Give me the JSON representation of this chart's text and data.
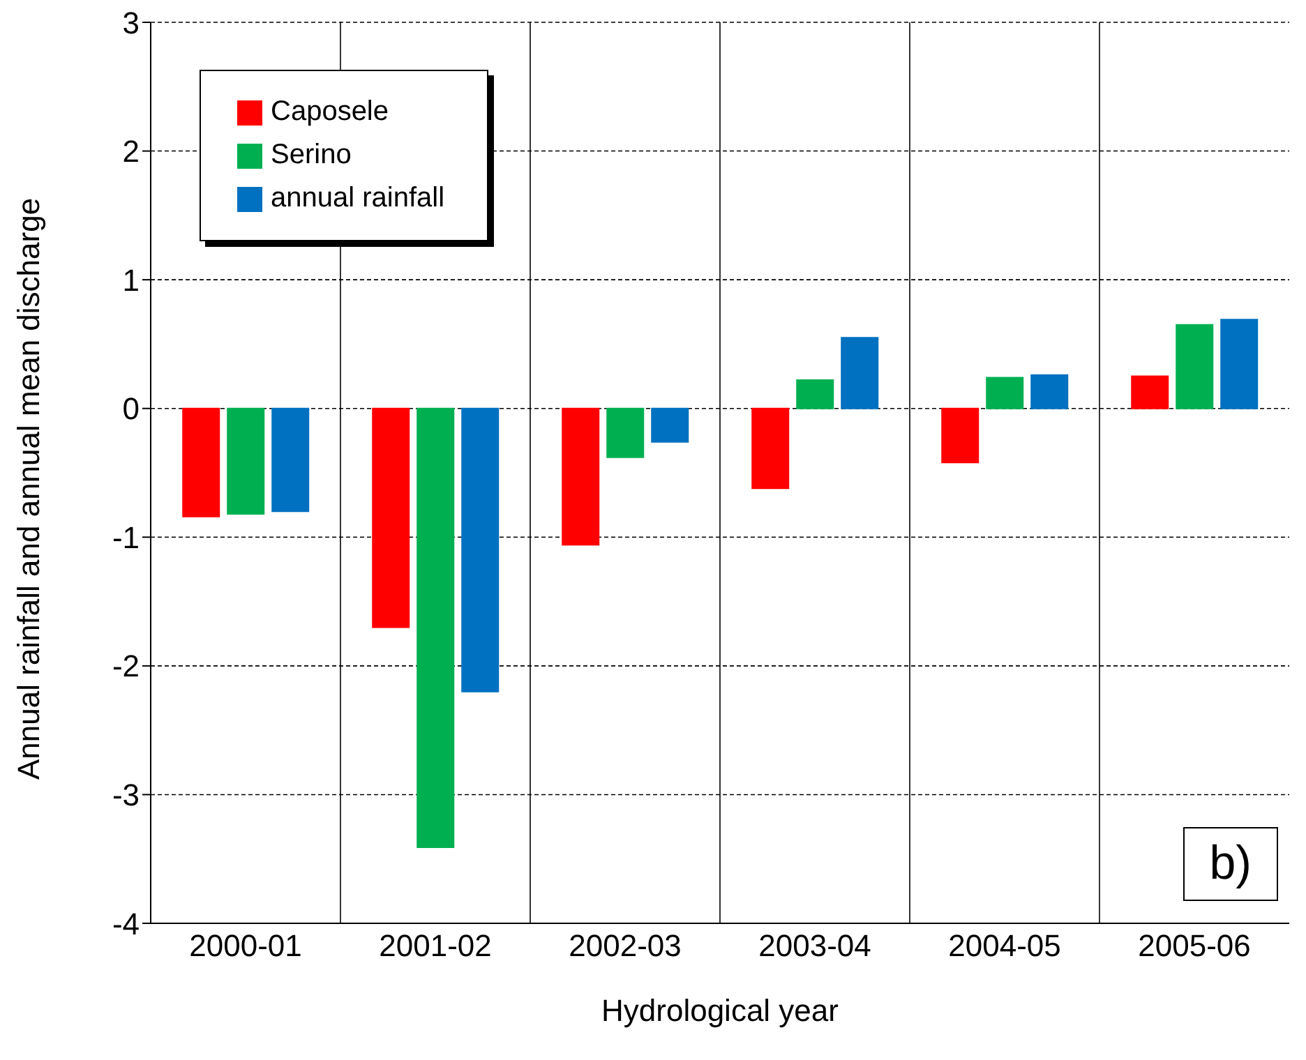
{
  "chart_data": {
    "type": "bar",
    "xlabel": "Hydrological year",
    "ylabel": "Annual rainfall and annual mean discharge",
    "categories": [
      "2000-01",
      "2001-02",
      "2002-03",
      "2003-04",
      "2004-05",
      "2005-06"
    ],
    "series": [
      {
        "name": "Caposele",
        "color": "#ff0000",
        "values": [
          -0.84,
          -1.7,
          -1.06,
          -0.62,
          -0.42,
          0.25
        ]
      },
      {
        "name": "Serino",
        "color": "#00b050",
        "values": [
          -0.82,
          -3.41,
          -0.38,
          0.22,
          0.24,
          0.65
        ]
      },
      {
        "name": "annual rainfall",
        "color": "#0070c0",
        "values": [
          -0.8,
          -2.2,
          -0.26,
          0.55,
          0.26,
          0.69
        ]
      }
    ],
    "ylim": [
      -4,
      3
    ],
    "yticks": [
      -4,
      -3,
      -2,
      -1,
      0,
      1,
      2,
      3
    ],
    "grid": true,
    "legend": "top left",
    "annotations": [
      "b)"
    ]
  }
}
